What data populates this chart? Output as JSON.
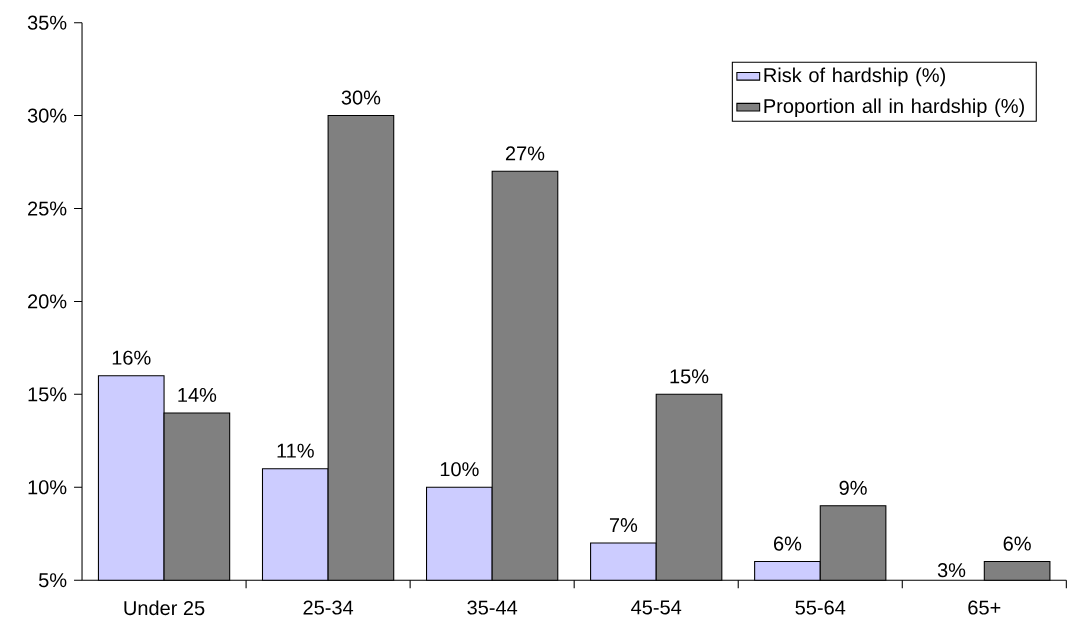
{
  "chart_data": {
    "type": "bar",
    "categories": [
      "Under 25",
      "25-34",
      "35-44",
      "45-54",
      "55-64",
      "65+"
    ],
    "series": [
      {
        "name": "Risk of hardship (%)",
        "color": "#ccccff",
        "values": [
          16,
          11,
          10,
          7,
          6,
          null
        ],
        "value_labels": [
          "16%",
          "11%",
          "10%",
          "7%",
          "6%",
          "3%"
        ]
      },
      {
        "name": "Proportion all in hardship (%)",
        "color": "#808080",
        "values": [
          14,
          30,
          27,
          15,
          9,
          6
        ],
        "value_labels": [
          "14%",
          "30%",
          "27%",
          "15%",
          "9%",
          "6%"
        ]
      }
    ],
    "ylim": [
      5,
      35
    ],
    "yticks": [
      {
        "value": 5,
        "label": "5%"
      },
      {
        "value": 10,
        "label": "10%"
      },
      {
        "value": 15,
        "label": "15%"
      },
      {
        "value": 20,
        "label": "20%"
      },
      {
        "value": 25,
        "label": "25%"
      },
      {
        "value": 30,
        "label": "30%"
      },
      {
        "value": 35,
        "label": "35%"
      }
    ],
    "legend": "top right",
    "grid": false
  }
}
